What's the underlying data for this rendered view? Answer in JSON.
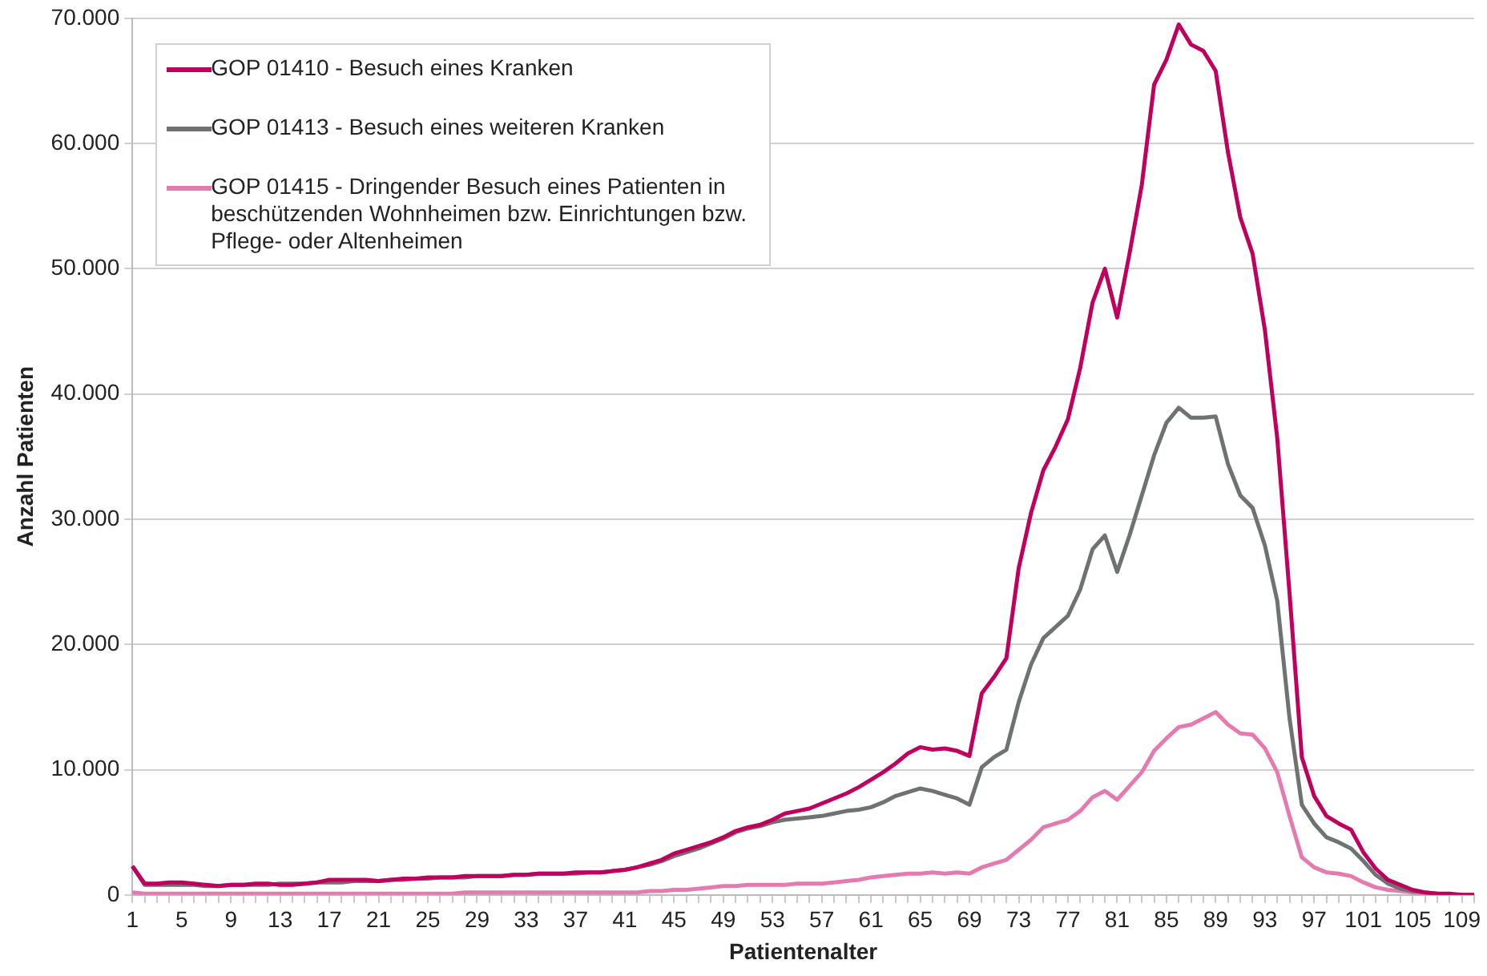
{
  "chart_data": {
    "type": "line",
    "xlabel": "Patientenalter",
    "ylabel": "Anzahl Patienten",
    "categories": [
      "1",
      null,
      null,
      null,
      "5",
      null,
      null,
      null,
      "9",
      null,
      null,
      null,
      "13",
      null,
      null,
      null,
      "17",
      null,
      null,
      null,
      "21",
      null,
      null,
      null,
      "25",
      null,
      null,
      null,
      "29",
      null,
      null,
      null,
      "33",
      null,
      null,
      null,
      "37",
      null,
      null,
      null,
      "41",
      null,
      null,
      null,
      "45",
      null,
      null,
      null,
      "49",
      null,
      null,
      null,
      "53",
      null,
      null,
      null,
      "57",
      null,
      null,
      null,
      "61",
      null,
      null,
      null,
      "65",
      null,
      null,
      null,
      "69",
      null,
      null,
      null,
      "73",
      null,
      null,
      null,
      "77",
      null,
      null,
      null,
      "81",
      null,
      null,
      null,
      "85",
      null,
      null,
      null,
      "89",
      null,
      null,
      null,
      "93",
      null,
      null,
      null,
      "97",
      null,
      null,
      null,
      "101",
      null,
      null,
      null,
      "105",
      null,
      null,
      null,
      "109",
      null
    ],
    "series": [
      {
        "name": "GOP 01410 - Besuch eines Kranken",
        "color": "#c0005e",
        "values": [
          2300,
          900,
          900,
          1000,
          1000,
          900,
          800,
          700,
          800,
          800,
          900,
          900,
          800,
          800,
          900,
          1000,
          1200,
          1200,
          1200,
          1200,
          1100,
          1200,
          1300,
          1300,
          1400,
          1400,
          1400,
          1500,
          1500,
          1500,
          1500,
          1600,
          1600,
          1700,
          1700,
          1700,
          1800,
          1800,
          1800,
          1900,
          2000,
          2200,
          2500,
          2800,
          3300,
          3600,
          3900,
          4200,
          4600,
          5100,
          5400,
          5600,
          6000,
          6500,
          6700,
          6900,
          7300,
          7700,
          8100,
          8600,
          9200,
          9800,
          10500,
          11300,
          11800,
          11600,
          11700,
          11500,
          11100,
          16100,
          17400,
          18900,
          26100,
          30500,
          33900,
          35800,
          38000,
          42100,
          47300,
          50000,
          46100,
          51200,
          56700,
          64700,
          66700,
          69500,
          67900,
          67400,
          65800,
          59300,
          54100,
          51200,
          45100,
          36500,
          24100,
          11000,
          7900,
          6300,
          5700,
          5200,
          3400,
          2100,
          1200,
          800,
          400,
          200,
          100,
          100,
          0,
          0
        ]
      },
      {
        "name": "GOP 01413 - Besuch eines weiteren Kranken",
        "color": "#6e7371",
        "values": [
          2300,
          800,
          800,
          800,
          800,
          800,
          700,
          700,
          800,
          800,
          800,
          800,
          900,
          900,
          900,
          1000,
          1000,
          1000,
          1100,
          1100,
          1100,
          1200,
          1200,
          1300,
          1300,
          1400,
          1400,
          1400,
          1500,
          1500,
          1500,
          1600,
          1600,
          1700,
          1700,
          1700,
          1700,
          1800,
          1800,
          1900,
          2000,
          2200,
          2400,
          2700,
          3100,
          3400,
          3700,
          4100,
          4500,
          5000,
          5300,
          5500,
          5800,
          6000,
          6100,
          6200,
          6300,
          6500,
          6700,
          6800,
          7000,
          7400,
          7900,
          8200,
          8500,
          8300,
          8000,
          7700,
          7200,
          10200,
          11000,
          11600,
          15400,
          18400,
          20500,
          21400,
          22300,
          24400,
          27600,
          28700,
          25800,
          28700,
          31900,
          35100,
          37700,
          38900,
          38100,
          38100,
          38200,
          34400,
          31900,
          30900,
          27900,
          23500,
          14100,
          7200,
          5700,
          4600,
          4200,
          3700,
          2700,
          1600,
          900,
          500,
          300,
          200,
          100,
          0,
          0,
          0
        ]
      },
      {
        "name": "GOP 01415 - Dringender Besuch eines Patienten in beschützenden Wohnheimen bzw. Einrichtungen bzw. Pflege- oder Altenheimen",
        "color": "#e57ab0",
        "values": [
          200,
          100,
          100,
          100,
          100,
          100,
          100,
          100,
          100,
          100,
          100,
          100,
          100,
          100,
          100,
          100,
          100,
          100,
          100,
          100,
          100,
          100,
          100,
          100,
          100,
          100,
          100,
          200,
          200,
          200,
          200,
          200,
          200,
          200,
          200,
          200,
          200,
          200,
          200,
          200,
          200,
          200,
          300,
          300,
          400,
          400,
          500,
          600,
          700,
          700,
          800,
          800,
          800,
          800,
          900,
          900,
          900,
          1000,
          1100,
          1200,
          1400,
          1500,
          1600,
          1700,
          1700,
          1800,
          1700,
          1800,
          1700,
          2200,
          2500,
          2800,
          3600,
          4400,
          5400,
          5700,
          6000,
          6700,
          7800,
          8300,
          7600,
          8700,
          9800,
          11500,
          12500,
          13400,
          13600,
          14100,
          14600,
          13600,
          12900,
          12800,
          11700,
          9800,
          6300,
          3000,
          2200,
          1800,
          1700,
          1500,
          1000,
          600,
          400,
          300,
          200,
          100,
          0,
          0,
          0,
          0
        ]
      }
    ],
    "ylim": [
      0,
      70000
    ],
    "yticks": [
      {
        "value": 0,
        "label": "0"
      },
      {
        "value": 10000,
        "label": "10.000"
      },
      {
        "value": 20000,
        "label": "20.000"
      },
      {
        "value": 30000,
        "label": "30.000"
      },
      {
        "value": 40000,
        "label": "40.000"
      },
      {
        "value": 50000,
        "label": "50.000"
      },
      {
        "value": 60000,
        "label": "60.000"
      },
      {
        "value": 70000,
        "label": "70.000"
      }
    ],
    "grid": "y",
    "legend": "top left",
    "marker": "none",
    "line_style": "solid"
  }
}
